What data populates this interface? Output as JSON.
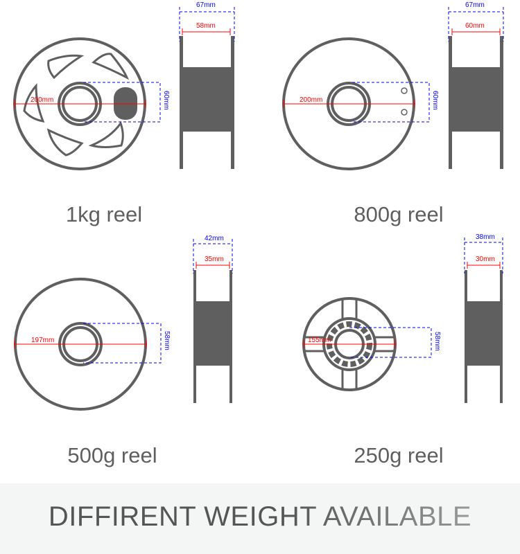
{
  "reels": [
    {
      "label": "1kg reel",
      "diameter": "200mm",
      "hub": "60mm",
      "outer_width": "67mm",
      "inner_width": "58mm"
    },
    {
      "label": "800g reel",
      "diameter": "200mm",
      "hub": "60mm",
      "outer_width": "67mm",
      "inner_width": "60mm"
    },
    {
      "label": "500g reel",
      "diameter": "197mm",
      "hub": "58mm",
      "outer_width": "42mm",
      "inner_width": "35mm"
    },
    {
      "label": "250g reel",
      "diameter": "155mm",
      "hub": "58mm",
      "outer_width": "38mm",
      "inner_width": "30mm"
    }
  ],
  "banner": {
    "text": "DIFFIRENT WEIGHT AVAILABLE"
  },
  "colors": {
    "reel": "#5f5f5f",
    "dimension_red": "#ff0000",
    "dimension_blue": "#0000ff"
  }
}
